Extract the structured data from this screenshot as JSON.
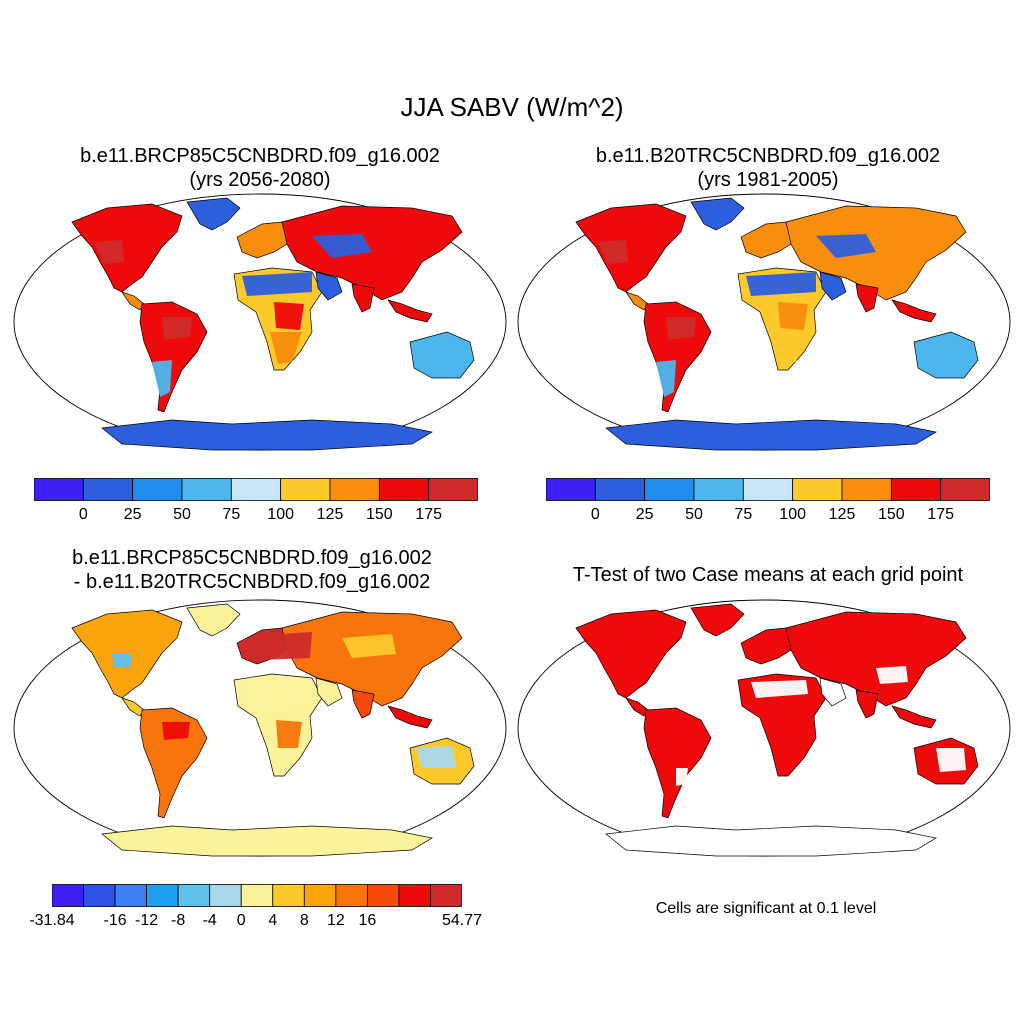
{
  "figure": {
    "title": "JJA SABV (W/m^2)"
  },
  "panels": [
    {
      "id": "case",
      "title_lines": [
        "b.e11.BRCP85C5CNBDRD.f09_g16.002",
        "(yrs 2056-2080)"
      ],
      "colorbar": {
        "colors": [
          "#3b1ff5",
          "#2d5fdc",
          "#1f8ef0",
          "#4cb6ee",
          "#c8e6f8",
          "#fdc92b",
          "#f98d0c",
          "#ee0a0a",
          "#cf2a2a"
        ],
        "labels": [
          "0",
          "25",
          "50",
          "75",
          "100",
          "125",
          "150",
          "175"
        ]
      }
    },
    {
      "id": "control",
      "title_lines": [
        "b.e11.B20TRC5CNBDRD.f09_g16.002",
        "(yrs 1981-2005)"
      ],
      "colorbar": {
        "colors": [
          "#3b1ff5",
          "#2d5fdc",
          "#1f8ef0",
          "#4cb6ee",
          "#c8e6f8",
          "#fdc92b",
          "#f98d0c",
          "#ee0a0a",
          "#cf2a2a"
        ],
        "labels": [
          "0",
          "25",
          "50",
          "75",
          "100",
          "125",
          "150",
          "175"
        ]
      }
    },
    {
      "id": "difference",
      "title_lines": [
        "b.e11.BRCP85C5CNBDRD.f09_g16.002",
        "- b.e11.B20TRC5CNBDRD.f09_g16.002"
      ],
      "colorbar": {
        "colors": [
          "#3b1ff5",
          "#2d52e3",
          "#3d7ff0",
          "#1fa0f0",
          "#5fc0ee",
          "#a9d8ee",
          "#fcf29a",
          "#fdc92b",
          "#fba40c",
          "#f9750c",
          "#f54a0c",
          "#ee0a0a",
          "#cf2a2a"
        ],
        "labels": [
          "-31.84",
          "-16",
          "-12",
          "-8",
          "-4",
          "0",
          "4",
          "8",
          "12",
          "16",
          "54.77"
        ]
      }
    },
    {
      "id": "ttest",
      "title_lines": [
        "T-Test of two Case means at each grid point"
      ],
      "note": "Cells are significant at 0.1 level"
    }
  ]
}
